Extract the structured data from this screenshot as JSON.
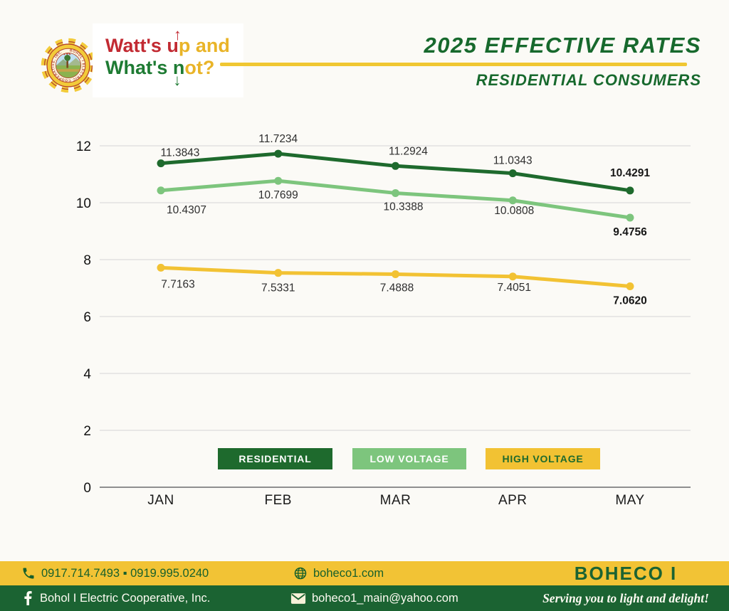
{
  "header": {
    "logo": {
      "seal_ring_text": "BOHOL I ELECTRIC COOPERATIVE, INC.",
      "seal_bottom_text": "OFFICIAL SEAL"
    },
    "tagline": {
      "line1_prefix": "Watt's ",
      "line1_arrow_letter": "u",
      "line1_arrow_glyph": "↑",
      "line1_suffix": "p and",
      "line2_prefix": "What's ",
      "line2_arrow_letter": "n",
      "line2_arrow_glyph": "↓",
      "line2_suffix": "ot?"
    },
    "title": "2025 EFFECTIVE RATES",
    "subtitle": "RESIDENTIAL CONSUMERS"
  },
  "chart_data": {
    "type": "line",
    "title": "2025 Effective Rates - Residential Consumers",
    "categories": [
      "JAN",
      "FEB",
      "MAR",
      "APR",
      "MAY"
    ],
    "series": [
      {
        "name": "RESIDENTIAL",
        "color": "#1e6a2d",
        "legend_text": "#ffffff",
        "values": [
          11.3843,
          11.7234,
          11.2924,
          11.0343,
          10.4291
        ]
      },
      {
        "name": "LOW VOLTAGE",
        "color": "#7dc57d",
        "legend_text": "#ffffff",
        "values": [
          10.4307,
          10.7699,
          10.3388,
          10.0808,
          9.4756
        ]
      },
      {
        "name": "HIGH VOLTAGE",
        "color": "#f2c233",
        "legend_text": "#1e6a2d",
        "values": [
          7.7163,
          7.5331,
          7.4888,
          7.4051,
          7.062
        ]
      }
    ],
    "xlabel": "",
    "ylabel": "",
    "ylim": [
      0,
      12
    ],
    "yticks": [
      0,
      2,
      4,
      6,
      8,
      10,
      12
    ],
    "grid": true,
    "legend_position": "bottom"
  },
  "footer": {
    "phones": "0917.714.7493 ▪ 0919.995.0240",
    "website": "boheco1.com",
    "facebook_name": "Bohol I Electric Cooperative, Inc.",
    "email": "boheco1_main@yahoo.com",
    "brand": "BOHECO I",
    "slogan": "Serving you to light and delight!"
  },
  "colors": {
    "dark_green": "#1e6a2d",
    "light_green": "#7dc57d",
    "yellow": "#f2c335",
    "red": "#c22a32",
    "gold": "#e9b428",
    "page_bg": "#fbfaf6"
  }
}
